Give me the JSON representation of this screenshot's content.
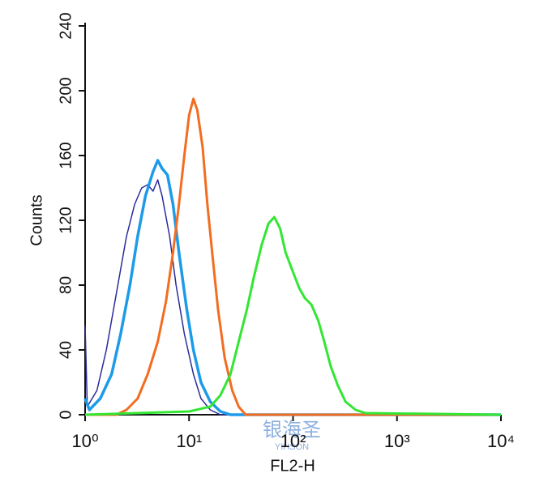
{
  "chart_data": {
    "type": "line",
    "x_label": "FL2-H",
    "y_label": "Counts",
    "xscale": "log",
    "xlim": [
      1,
      10000
    ],
    "ylim": [
      0,
      240
    ],
    "xticks": [
      {
        "value": 1,
        "label": "10⁰"
      },
      {
        "value": 10,
        "label": "10¹"
      },
      {
        "value": 100,
        "label": "10²"
      },
      {
        "value": 1000,
        "label": "10³"
      },
      {
        "value": 10000,
        "label": "10⁴"
      }
    ],
    "yticks": [
      0,
      40,
      80,
      120,
      160,
      200,
      240
    ],
    "watermark": [
      "银海圣",
      "YIHSON"
    ],
    "series": [
      {
        "color": "#2b2b9a",
        "width": 1.5,
        "x": [
          1,
          1.05,
          1.3,
          1.6,
          2,
          2.5,
          3,
          3.5,
          4,
          4.5,
          5,
          5.5,
          6.5,
          7.5,
          9,
          11,
          13,
          16,
          20,
          10000
        ],
        "values": [
          55,
          5,
          15,
          40,
          75,
          110,
          130,
          140,
          142,
          138,
          145,
          135,
          110,
          80,
          50,
          25,
          10,
          3,
          0,
          0
        ]
      },
      {
        "color": "#1e9be8",
        "width": 3.5,
        "x": [
          1,
          1.1,
          1.4,
          1.8,
          2.2,
          2.7,
          3.2,
          3.8,
          4.5,
          5,
          5.5,
          6.2,
          7,
          8,
          9.5,
          11,
          13,
          16,
          20,
          25,
          10000
        ],
        "values": [
          10,
          3,
          10,
          25,
          50,
          80,
          110,
          135,
          150,
          157,
          152,
          148,
          130,
          100,
          65,
          40,
          20,
          8,
          2,
          0,
          0
        ]
      },
      {
        "color": "#f26d21",
        "width": 3,
        "x": [
          1,
          2,
          2.5,
          3.2,
          4,
          5,
          6,
          7,
          8,
          9,
          10,
          11,
          12,
          13.5,
          15,
          17,
          19,
          22,
          26,
          30,
          35,
          10000
        ],
        "values": [
          0,
          0,
          3,
          10,
          25,
          45,
          70,
          100,
          130,
          160,
          185,
          195,
          188,
          165,
          130,
          95,
          65,
          35,
          15,
          5,
          0,
          0
        ]
      },
      {
        "color": "#33e633",
        "width": 3,
        "x": [
          1,
          10,
          16,
          20,
          25,
          30,
          36,
          42,
          50,
          58,
          66,
          75,
          85,
          100,
          115,
          130,
          150,
          175,
          200,
          230,
          270,
          320,
          400,
          500,
          10000
        ],
        "values": [
          0,
          2,
          5,
          12,
          25,
          45,
          65,
          85,
          105,
          118,
          122,
          115,
          100,
          88,
          78,
          72,
          68,
          58,
          45,
          30,
          18,
          8,
          3,
          1,
          0
        ]
      }
    ]
  }
}
